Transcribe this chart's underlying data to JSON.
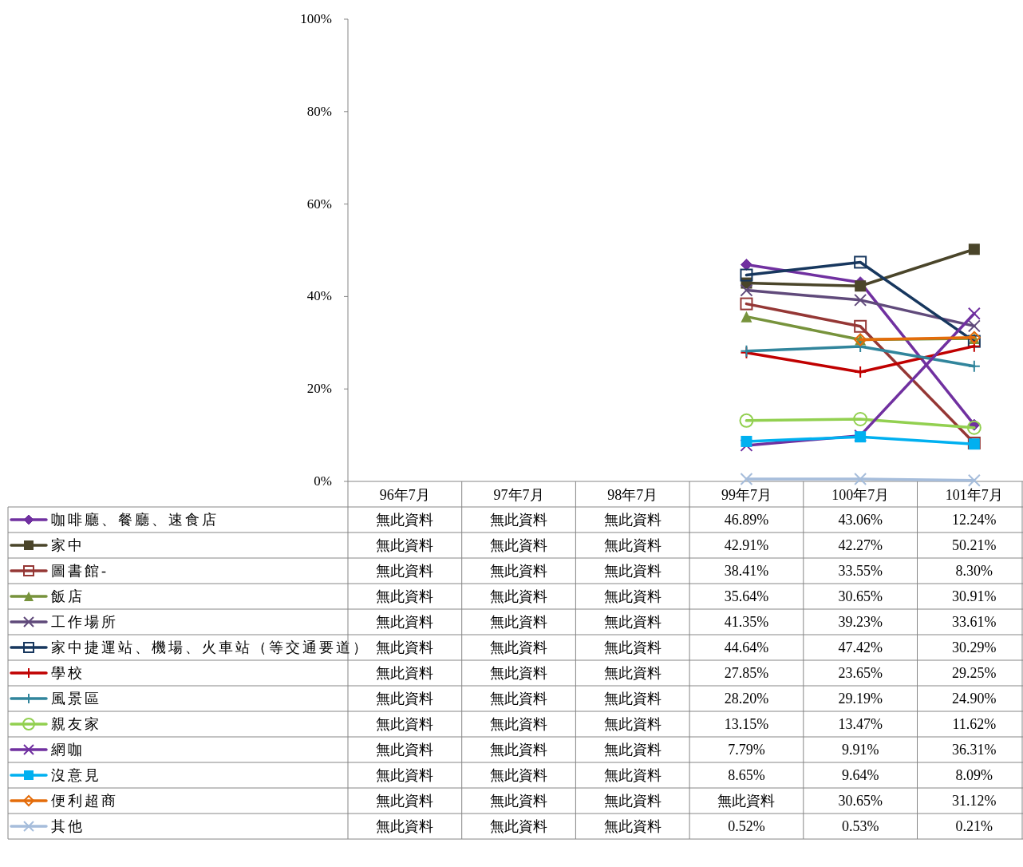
{
  "chart_data": {
    "type": "line",
    "categories": [
      "96年7月",
      "97年7月",
      "98年7月",
      "99年7月",
      "100年7月",
      "101年7月"
    ],
    "ylim": [
      0,
      100
    ],
    "yticks": [
      {
        "value": 0,
        "label": "0%"
      },
      {
        "value": 20,
        "label": "20%"
      },
      {
        "value": 40,
        "label": "40%"
      },
      {
        "value": 60,
        "label": "60%"
      },
      {
        "value": 80,
        "label": "80%"
      },
      {
        "value": 100,
        "label": "100%"
      }
    ],
    "legend": "bottom",
    "series": [
      {
        "name": "咖啡廳、餐廳、速食店",
        "color": "#7030a0",
        "marker": "diamond",
        "values": [
          null,
          null,
          null,
          46.89,
          43.06,
          12.24
        ],
        "value_labels": [
          "無此資料",
          "無此資料",
          "無此資料",
          "46.89%",
          "43.06%",
          "12.24%"
        ]
      },
      {
        "name": "家中",
        "color": "#4a452a",
        "marker": "square",
        "values": [
          null,
          null,
          null,
          42.91,
          42.27,
          50.21
        ],
        "value_labels": [
          "無此資料",
          "無此資料",
          "無此資料",
          "42.91%",
          "42.27%",
          "50.21%"
        ]
      },
      {
        "name": "圖書館-",
        "color": "#953735",
        "marker": "square_open",
        "values": [
          null,
          null,
          null,
          38.41,
          33.55,
          8.3
        ],
        "value_labels": [
          "無此資料",
          "無此資料",
          "無此資料",
          "38.41%",
          "33.55%",
          "8.30%"
        ]
      },
      {
        "name": "飯店",
        "color": "#77933c",
        "marker": "triangle",
        "values": [
          null,
          null,
          null,
          35.64,
          30.65,
          30.91
        ],
        "value_labels": [
          "無此資料",
          "無此資料",
          "無此資料",
          "35.64%",
          "30.65%",
          "30.91%"
        ]
      },
      {
        "name": "工作場所",
        "color": "#604a7b",
        "marker": "cross",
        "values": [
          null,
          null,
          null,
          41.35,
          39.23,
          33.61
        ],
        "value_labels": [
          "無此資料",
          "無此資料",
          "無此資料",
          "41.35%",
          "39.23%",
          "33.61%"
        ]
      },
      {
        "name": "家中捷運站、機場、火車站（等交通要道）",
        "color": "#17375e",
        "marker": "square_open",
        "values": [
          null,
          null,
          null,
          44.64,
          47.42,
          30.29
        ],
        "value_labels": [
          "無此資料",
          "無此資料",
          "無此資料",
          "44.64%",
          "47.42%",
          "30.29%"
        ]
      },
      {
        "name": "學校",
        "color": "#c00000",
        "marker": "plus",
        "values": [
          null,
          null,
          null,
          27.85,
          23.65,
          29.25
        ],
        "value_labels": [
          "無此資料",
          "無此資料",
          "無此資料",
          "27.85%",
          "23.65%",
          "29.25%"
        ]
      },
      {
        "name": "風景區",
        "color": "#31859c",
        "marker": "plus",
        "values": [
          null,
          null,
          null,
          28.2,
          29.19,
          24.9
        ],
        "value_labels": [
          "無此資料",
          "無此資料",
          "無此資料",
          "28.20%",
          "29.19%",
          "24.90%"
        ]
      },
      {
        "name": "親友家",
        "color": "#92d050",
        "marker": "circle_open",
        "values": [
          null,
          null,
          null,
          13.15,
          13.47,
          11.62
        ],
        "value_labels": [
          "無此資料",
          "無此資料",
          "無此資料",
          "13.15%",
          "13.47%",
          "11.62%"
        ]
      },
      {
        "name": "網咖",
        "color": "#7030a0",
        "marker": "cross",
        "values": [
          null,
          null,
          null,
          7.79,
          9.91,
          36.31
        ],
        "value_labels": [
          "無此資料",
          "無此資料",
          "無此資料",
          "7.79%",
          "9.91%",
          "36.31%"
        ]
      },
      {
        "name": "沒意見",
        "color": "#00b0f0",
        "marker": "square",
        "values": [
          null,
          null,
          null,
          8.65,
          9.64,
          8.09
        ],
        "value_labels": [
          "無此資料",
          "無此資料",
          "無此資料",
          "8.65%",
          "9.64%",
          "8.09%"
        ]
      },
      {
        "name": "便利超商",
        "color": "#e46c0a",
        "marker": "diamond_open",
        "values": [
          null,
          null,
          null,
          null,
          30.65,
          31.12
        ],
        "value_labels": [
          "無此資料",
          "無此資料",
          "無此資料",
          "無此資料",
          "30.65%",
          "31.12%"
        ]
      },
      {
        "name": "其他",
        "color": "#a6bddb",
        "marker": "cross",
        "values": [
          null,
          null,
          null,
          0.52,
          0.53,
          0.21
        ],
        "value_labels": [
          "無此資料",
          "無此資料",
          "無此資料",
          "0.52%",
          "0.53%",
          "0.21%"
        ]
      }
    ]
  }
}
